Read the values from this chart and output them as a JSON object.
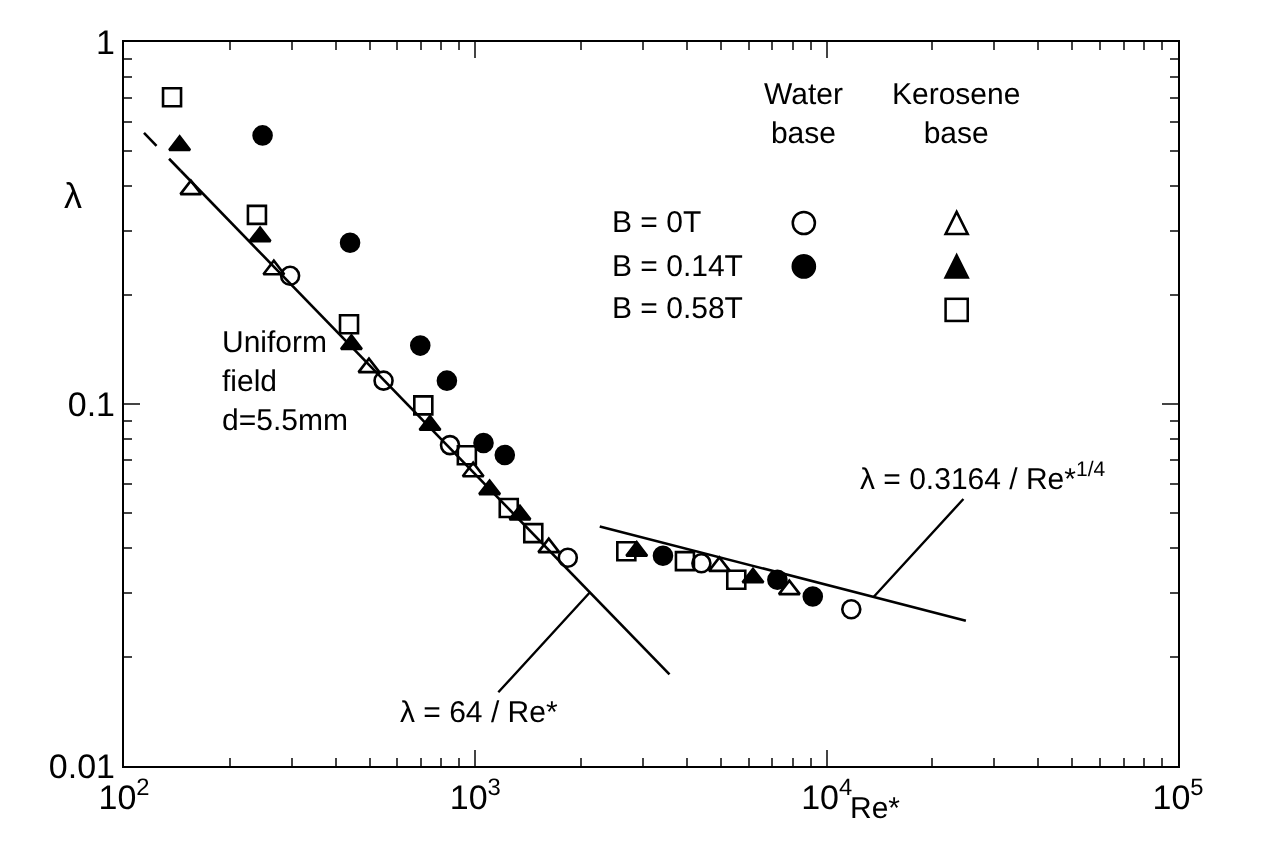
{
  "chart_data": {
    "type": "scatter",
    "xlabel": "Re*",
    "ylabel": "λ",
    "log": "xy",
    "grid": false,
    "legend": false,
    "xlim": [
      100,
      100000
    ],
    "xticks": [
      {
        "value": 100,
        "label": "10$^{2}$"
      },
      {
        "value": 1000,
        "label": "10$^{3}$"
      },
      {
        "value": 10000,
        "label": "10$^{4}$"
      },
      {
        "value": 100000,
        "label": "10$^{5}$"
      }
    ],
    "ylim": [
      0.01,
      1
    ],
    "yticks": [
      0.01,
      0.1,
      1
    ],
    "series": [
      {
        "color": "#000000",
        "marker": "circle-open",
        "x": [
          297,
          548,
          847,
          1833,
          4400,
          11750
        ],
        "values": [
          0.226,
          0.116,
          0.077,
          0.0376,
          0.0363,
          0.0271
        ]
      },
      {
        "color": "#000000",
        "marker": "triangle-open",
        "x": [
          155,
          267,
          498,
          986,
          1618,
          4950,
          7830
        ],
        "values": [
          0.391,
          0.235,
          0.126,
          0.065,
          0.0401,
          0.0356,
          0.0307
        ]
      },
      {
        "color": "#000000",
        "marker": "circle",
        "x": [
          248,
          440,
          697,
          830,
          1055,
          1213,
          3420,
          7240,
          9130
        ],
        "values": [
          0.552,
          0.279,
          0.145,
          0.116,
          0.078,
          0.0723,
          0.0381,
          0.0327,
          0.0294
        ]
      },
      {
        "color": "#000000",
        "marker": "triangle",
        "x": [
          144,
          244,
          444,
          743,
          1098,
          1340,
          2880,
          6170
        ],
        "values": [
          0.518,
          0.29,
          0.146,
          0.0874,
          0.058,
          0.0494,
          0.0392,
          0.0331
        ]
      },
      {
        "color": "#000000",
        "marker": "square-open",
        "x": [
          137,
          239,
          437,
          711,
          946,
          1245,
          1462,
          2690,
          3950,
          5530
        ],
        "values": [
          0.704,
          0.333,
          0.166,
          0.0991,
          0.0722,
          0.0516,
          0.044,
          0.0392,
          0.0368,
          0.0327
        ]
      },
      {
        "type": "line",
        "color": "#000000",
        "line_style": "dashed",
        "x": [
          114,
          145
        ],
        "values": [
          0.561,
          0.441
        ]
      },
      {
        "type": "line",
        "color": "#000000",
        "line_style": "solid",
        "x": [
          145,
          3570
        ],
        "values": [
          0.441,
          0.0179
        ]
      },
      {
        "type": "line",
        "color": "#000000",
        "line_style": "solid",
        "x": [
          2260,
          24900
        ],
        "values": [
          0.0459,
          0.0252
        ]
      }
    ],
    "annotations": [
      "Water\nbase",
      "Kerosene\nbase",
      "B = 0T",
      "B = 0.14T",
      "B = 0.58T",
      "Uniform\nfield\nd=5.5mm",
      {
        "text": "λ = 64 / Re*",
        "x": 2120,
        "y": 0.0302
      },
      {
        "text": "λ = 0.3164 / Re*$^{1/4}$",
        "x": 13600,
        "y": 0.0293
      }
    ]
  }
}
